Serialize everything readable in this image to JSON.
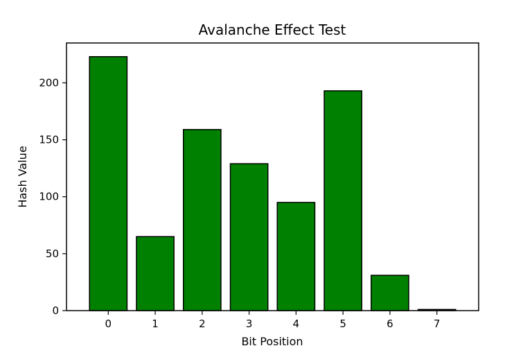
{
  "chart_data": {
    "type": "bar",
    "title": "Avalanche Effect Test",
    "xlabel": "Bit Position",
    "ylabel": "Hash Value",
    "categories": [
      "0",
      "1",
      "2",
      "3",
      "4",
      "5",
      "6",
      "7"
    ],
    "values": [
      223,
      65,
      159,
      129,
      95,
      193,
      31,
      1
    ],
    "ylim": [
      0,
      235
    ],
    "yticks": [
      0,
      50,
      100,
      150,
      200
    ],
    "bar_color": "#008000",
    "edge_color": "#000000",
    "grid": false,
    "legend": "none"
  }
}
